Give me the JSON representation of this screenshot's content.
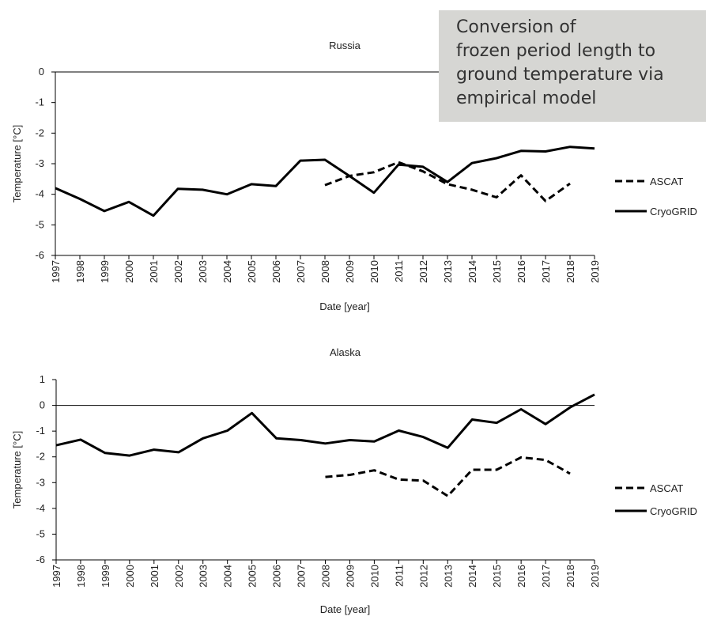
{
  "chart_data": [
    {
      "type": "line",
      "title": "Russia",
      "xlabel": "Date [year]",
      "ylabel": "Temperature [°C]",
      "annotation": "Conversion of\nfrozen period length to\nground temperature via\nempirical model",
      "x": [
        1997,
        1998,
        1999,
        2000,
        2001,
        2002,
        2003,
        2004,
        2005,
        2006,
        2007,
        2008,
        2009,
        2010,
        2011,
        2012,
        2013,
        2014,
        2015,
        2016,
        2017,
        2018,
        2019
      ],
      "xlim": [
        1997,
        2019
      ],
      "xticks": [
        1997,
        1998,
        1999,
        2000,
        2001,
        2002,
        2003,
        2004,
        2005,
        2006,
        2007,
        2008,
        2009,
        2010,
        2011,
        2012,
        2013,
        2014,
        2015,
        2016,
        2017,
        2018,
        2019
      ],
      "ylim": [
        -6,
        0
      ],
      "yticks": [
        -6,
        -5,
        -4,
        -3,
        -2,
        -1,
        0
      ],
      "legend": "right",
      "series": [
        {
          "name": "ASCAT",
          "color": "#000000",
          "style": "dashed",
          "values": [
            null,
            null,
            null,
            null,
            null,
            null,
            null,
            null,
            null,
            null,
            null,
            -3.7,
            -3.4,
            -3.28,
            -2.95,
            -3.25,
            -3.67,
            -3.85,
            -4.1,
            -3.38,
            -4.22,
            -3.65,
            null
          ]
        },
        {
          "name": "CryoGRID",
          "color": "#000000",
          "style": "solid",
          "values": [
            -3.8,
            -4.15,
            -4.55,
            -4.25,
            -4.7,
            -3.82,
            -3.85,
            -4.0,
            -3.67,
            -3.73,
            -2.9,
            -2.87,
            -3.4,
            -3.95,
            -3.03,
            -3.1,
            -3.6,
            -2.98,
            -2.82,
            -2.58,
            -2.6,
            -2.45,
            -2.5
          ]
        }
      ]
    },
    {
      "type": "line",
      "title": "Alaska",
      "xlabel": "Date [year]",
      "ylabel": "Temperature [°C]",
      "x": [
        1997,
        1998,
        1999,
        2000,
        2001,
        2002,
        2003,
        2004,
        2005,
        2006,
        2007,
        2008,
        2009,
        2010,
        2011,
        2012,
        2013,
        2014,
        2015,
        2016,
        2017,
        2018,
        2019
      ],
      "xlim": [
        1997,
        2019
      ],
      "xticks": [
        1997,
        1998,
        1999,
        2000,
        2001,
        2002,
        2003,
        2004,
        2005,
        2006,
        2007,
        2008,
        2009,
        2010,
        2011,
        2012,
        2013,
        2014,
        2015,
        2016,
        2017,
        2018,
        2019
      ],
      "ylim": [
        -6,
        1
      ],
      "yticks": [
        -6,
        -5,
        -4,
        -3,
        -2,
        -1,
        0,
        1
      ],
      "legend": "right",
      "series": [
        {
          "name": "ASCAT",
          "color": "#000000",
          "style": "dashed",
          "values": [
            null,
            null,
            null,
            null,
            null,
            null,
            null,
            null,
            null,
            null,
            null,
            -2.78,
            -2.7,
            -2.52,
            -2.88,
            -2.92,
            -3.52,
            -2.5,
            -2.5,
            -2.02,
            -2.12,
            -2.65,
            null
          ]
        },
        {
          "name": "CryoGRID",
          "color": "#000000",
          "style": "solid",
          "values": [
            -1.55,
            -1.33,
            -1.85,
            -1.95,
            -1.72,
            -1.82,
            -1.28,
            -0.98,
            -0.3,
            -1.28,
            -1.35,
            -1.48,
            -1.35,
            -1.4,
            -0.98,
            -1.23,
            -1.65,
            -0.55,
            -0.68,
            -0.15,
            -0.73,
            -0.08,
            0.42
          ]
        }
      ]
    }
  ]
}
